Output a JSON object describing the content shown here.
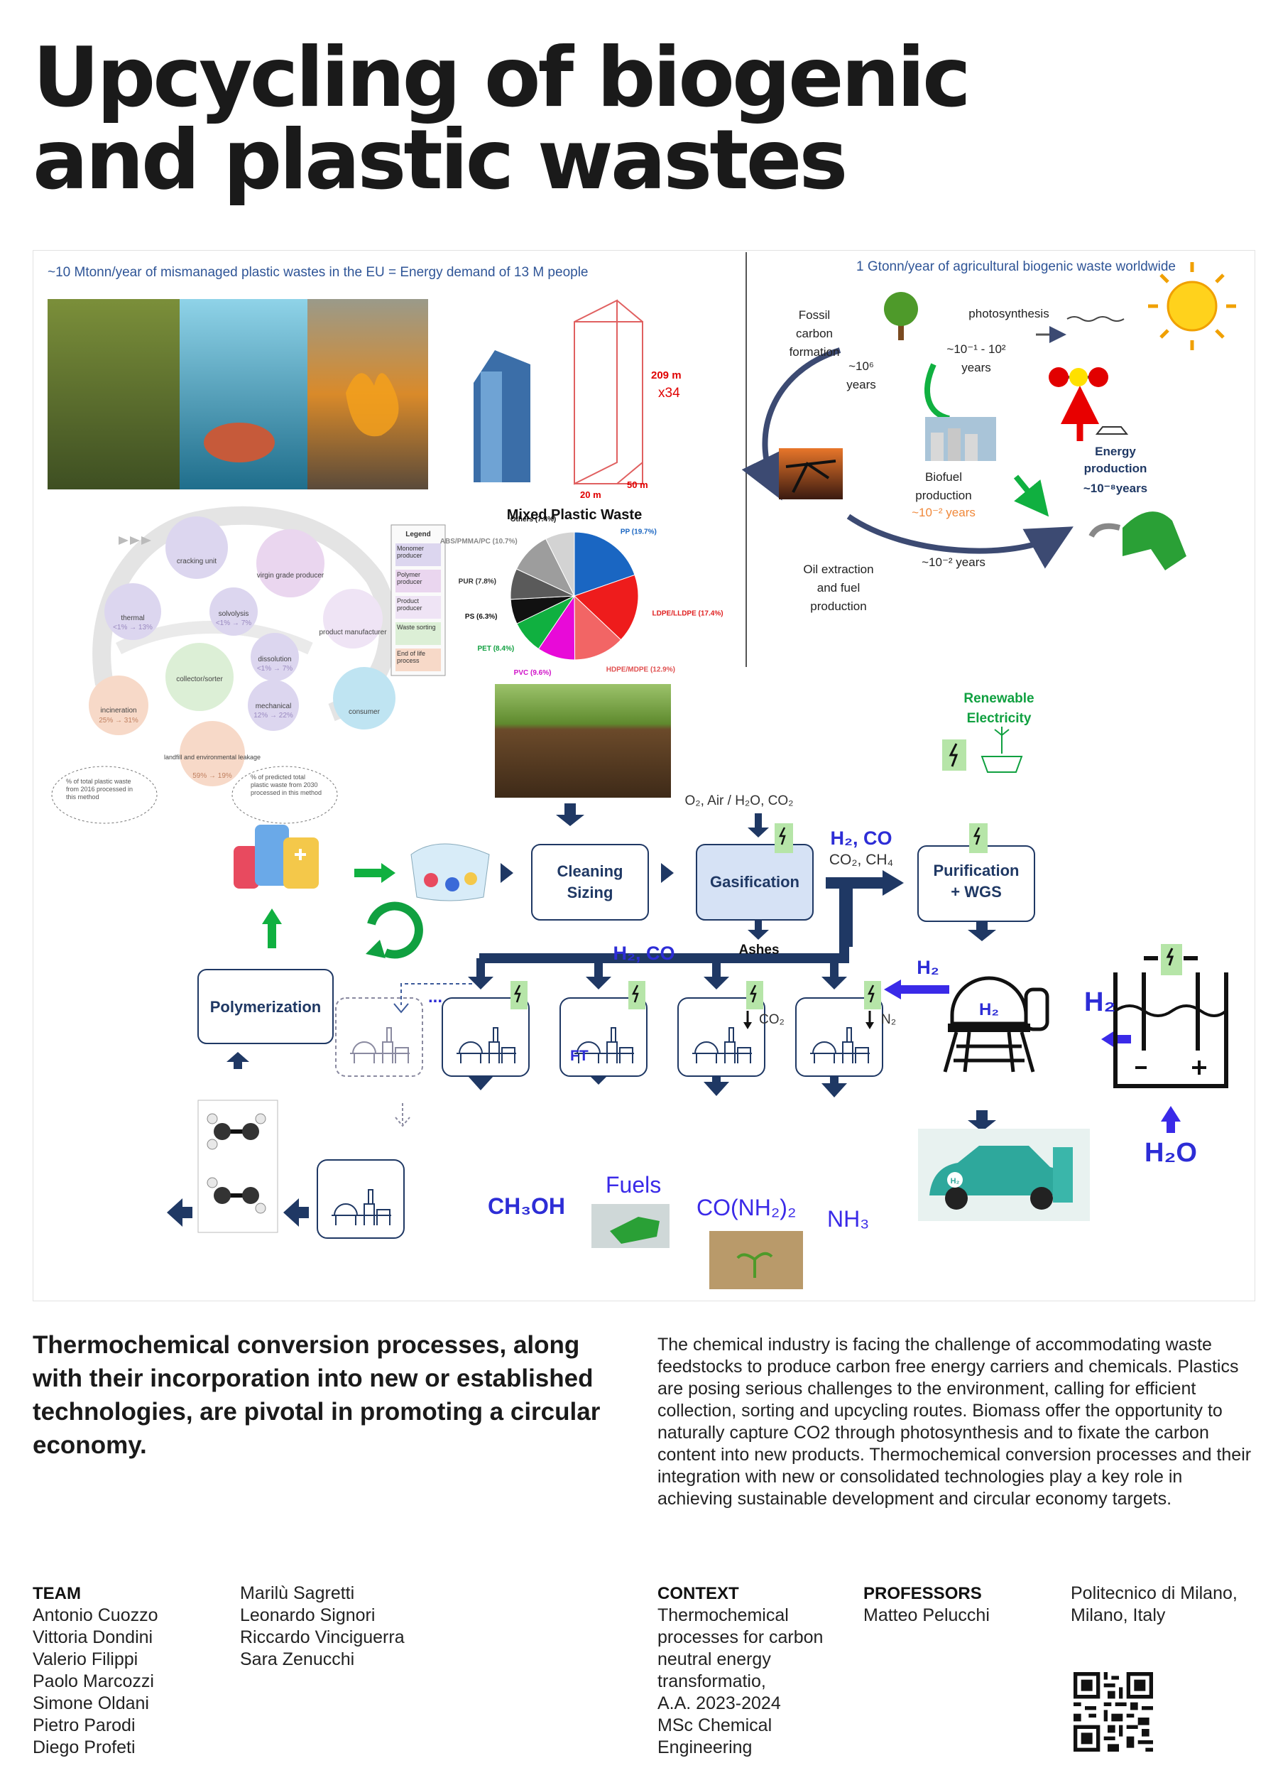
{
  "title": [
    "Upcycling of biogenic",
    "and plastic wastes"
  ],
  "figure": {
    "plastic_panel": {
      "heading": "~10 Mtonn/year of mismanaged plastic wastes in the EU = Energy demand of 13 M people",
      "building": {
        "height": "209 m",
        "multiplier": "x34",
        "width": "20 m",
        "depth": "50 m"
      },
      "loop_diagram": {
        "nodes": [
          "cracking unit",
          "virgin grade producer",
          "thermal",
          "solvolysis",
          "product manufacturer",
          "dissolution",
          "collector/sorter",
          "incineration",
          "mechanical",
          "consumer",
          "landfill and environmental leakage"
        ],
        "ranges": [
          "<1% → 13%",
          "<1% → 7%",
          "<1% → 7%",
          "25% → 31%",
          "12% → 22%",
          "59% → 19%"
        ],
        "notes": [
          "% of total plastic waste from 2016 processed in this method",
          "% of predicted total plastic waste from 2030 processed in this method"
        ],
        "legend_title": "Legend",
        "legend": [
          {
            "label": "Monomer producer",
            "color": "#dcd6ef"
          },
          {
            "label": "Polymer producer",
            "color": "#ead6ef"
          },
          {
            "label": "Product producer",
            "color": "#efe4f5"
          },
          {
            "label": "Waste sorting",
            "color": "#dcefd6"
          },
          {
            "label": "End of life process",
            "color": "#f7d9c8"
          }
        ]
      }
    },
    "pie_chart": {
      "type": "pie",
      "title": "Mixed Plastic Waste",
      "slices": [
        {
          "label": "PP (19.7%)",
          "value": 19.7,
          "color": "#1a66c2",
          "label_color": "#1a66c2"
        },
        {
          "label": "LDPE/LLDPE (17.4%)",
          "value": 17.4,
          "color": "#ee1c1c",
          "label_color": "#e02020"
        },
        {
          "label": "HDPE/MDPE (12.9%)",
          "value": 12.9,
          "color": "#f26565",
          "label_color": "#e05050"
        },
        {
          "label": "PVC (9.6%)",
          "value": 9.6,
          "color": "#e80ad8",
          "label_color": "#d010c8"
        },
        {
          "label": "PET (8.4%)",
          "value": 8.4,
          "color": "#10b040",
          "label_color": "#10a040"
        },
        {
          "label": "PS (6.3%)",
          "value": 6.3,
          "color": "#111111",
          "label_color": "#111111"
        },
        {
          "label": "PUR (7.8%)",
          "value": 7.8,
          "color": "#5a5a5a",
          "label_color": "#333333"
        },
        {
          "label": "ABS/PMMA/PC (10.7%)",
          "value": 10.7,
          "color": "#9d9d9d",
          "label_color": "#888888"
        },
        {
          "label": "Others (7.4%)",
          "value": 7.4,
          "color": "#d3d3d3",
          "label_color": "#111111"
        }
      ]
    },
    "biogenic_panel": {
      "heading": "1 Gtonn/year of agricultural biogenic waste worldwide",
      "fossil": [
        "Fossil",
        "carbon",
        "formation"
      ],
      "fossil_time": [
        "~10⁶",
        "years"
      ],
      "tree_time": [
        "~10⁻¹ - 10²",
        "years"
      ],
      "photosynthesis": "photosynthesis",
      "biofuel": [
        "Biofuel",
        "production"
      ],
      "biofuel_time": "~10⁻² years",
      "energy": [
        "Energy",
        "production"
      ],
      "energy_time": "~10⁻⁸years",
      "oil": [
        "Oil extraction",
        "and fuel",
        "production"
      ],
      "oil_time": "~10⁻² years"
    },
    "process": {
      "renewable": [
        "Renewable",
        "Electricity"
      ],
      "inputs": "O₂, Air / H₂O, CO₂",
      "cleaning": [
        "Cleaning",
        "Sizing"
      ],
      "gasification": "Gasification",
      "ashes": "Ashes",
      "gas_main": "H₂, CO",
      "gas_sub": "CO₂, CH₄",
      "purification": [
        "Purification",
        "+ WGS"
      ],
      "syngas": "H₂, CO",
      "h2_arrow": "H₂",
      "tank_label": "H₂",
      "electrolyzer_h2": "H₂",
      "water": "H₂O",
      "polymerization": "Polymerization",
      "dots": "...",
      "co2_feed": "CO₂",
      "n2_feed": "N₂",
      "ft": "FT",
      "products": {
        "methanol": "CH₃OH",
        "fuels": "Fuels",
        "urea": "CO(NH₂)₂",
        "ammonia": "NH₃"
      },
      "car_badge": "H₂"
    }
  },
  "tagline": "Thermochemical conversion processes, along with their incorporation into new or established technologies, are pivotal in promoting a circular economy.",
  "body_text": "The chemical industry is facing the challenge of accommodating waste feedstocks to produce carbon free energy carriers and chemicals. Plastics are posing serious challenges to the environment, calling for efficient collection, sorting and upcycling routes. Biomass offer the opportunity to naturally capture CO2 through photosynthesis and to fixate the carbon content into new products. Thermochemical conversion processes and their integration with new or consolidated technologies play a key role in achieving sustainable development and circular economy targets.",
  "credits": {
    "team_label": "TEAM",
    "team_col1": [
      "Antonio Cuozzo",
      "Vittoria Dondini",
      "Valerio Filippi",
      "Paolo Marcozzi",
      "Simone Oldani",
      "Pietro Parodi",
      "Diego Profeti"
    ],
    "team_col2": [
      "Marilù Sagretti",
      "Leonardo Signori",
      "Riccardo Vinciguerra",
      "Sara Zenucchi"
    ],
    "context_label": "CONTEXT",
    "context": [
      "Thermochemical",
      "processes for carbon",
      "neutral energy",
      "transformatio,",
      "A.A. 2023-2024",
      "MSc Chemical",
      "Engineering"
    ],
    "professors_label": "PROFESSORS",
    "professors": [
      "Matteo Pelucchi"
    ],
    "institution": [
      "Politecnico di Milano,",
      "Milano, Italy"
    ]
  }
}
